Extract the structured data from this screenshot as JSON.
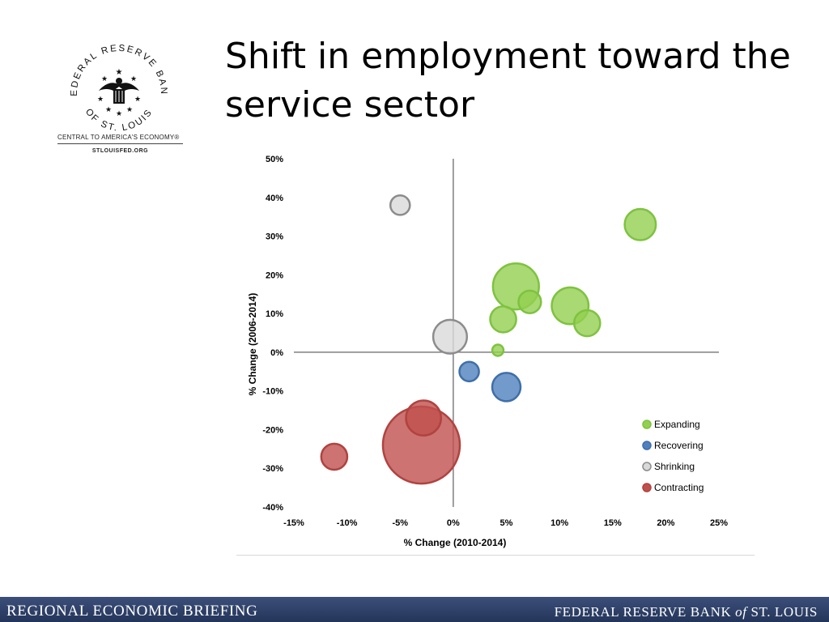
{
  "logo": {
    "ring_top": "FEDERAL RESERVE BANK",
    "ring_bottom": "OF ST. LOUIS",
    "tagline": "CENTRAL TO AMERICA'S ECONOMY®",
    "url": "STLOUISFED.ORG"
  },
  "slide": {
    "title_line1": "Shift in employment toward the",
    "title_line2": "service sector"
  },
  "footer": {
    "left": "REGIONAL ECONOMIC BRIEFING",
    "right_a": "FEDERAL RESERVE BANK ",
    "right_of": "of",
    "right_b": " ST. LOUIS"
  },
  "chart_data": {
    "type": "scatter",
    "subtype": "bubble",
    "title": "",
    "xlabel": "% Change  (2010-2014)",
    "ylabel": "% Change  (2006-2014)",
    "xlim": [
      -15,
      25
    ],
    "ylim": [
      -40,
      50
    ],
    "xticks": [
      "-15%",
      "-10%",
      "-5%",
      "0%",
      "5%",
      "10%",
      "15%",
      "20%",
      "25%"
    ],
    "yticks": [
      "50%",
      "40%",
      "30%",
      "20%",
      "10%",
      "0%",
      "-10%",
      "-20%",
      "-30%",
      "-40%"
    ],
    "grid": false,
    "legend_position": "bottom-right",
    "series": [
      {
        "name": "Expanding",
        "color": "#92d050",
        "stroke": "#7fc241",
        "points": [
          {
            "x": 5.9,
            "y": 17,
            "size": 5.0
          },
          {
            "x": 7.2,
            "y": 13,
            "size": 1.2
          },
          {
            "x": 11.0,
            "y": 12,
            "size": 3.2
          },
          {
            "x": 4.7,
            "y": 8.5,
            "size": 1.6
          },
          {
            "x": 12.6,
            "y": 7.5,
            "size": 1.6
          },
          {
            "x": 4.2,
            "y": 0.5,
            "size": 0.3
          },
          {
            "x": 17.6,
            "y": 33,
            "size": 2.3
          }
        ]
      },
      {
        "name": "Recovering",
        "color": "#4f81bd",
        "stroke": "#3f6fa8",
        "points": [
          {
            "x": 1.5,
            "y": -5,
            "size": 0.9
          },
          {
            "x": 5.0,
            "y": -9,
            "size": 1.9
          }
        ]
      },
      {
        "name": "Shrinking",
        "color": "#d9d9d9",
        "stroke": "#8c8c8c",
        "points": [
          {
            "x": -5.0,
            "y": 38,
            "size": 0.9
          },
          {
            "x": -0.3,
            "y": 4,
            "size": 2.7
          }
        ]
      },
      {
        "name": "Contracting",
        "color": "#c0504d",
        "stroke": "#b04340",
        "points": [
          {
            "x": -3.0,
            "y": -24,
            "size": 14.0
          },
          {
            "x": -2.8,
            "y": -17,
            "size": 2.9
          },
          {
            "x": -11.2,
            "y": -27,
            "size": 1.6
          }
        ]
      }
    ]
  }
}
